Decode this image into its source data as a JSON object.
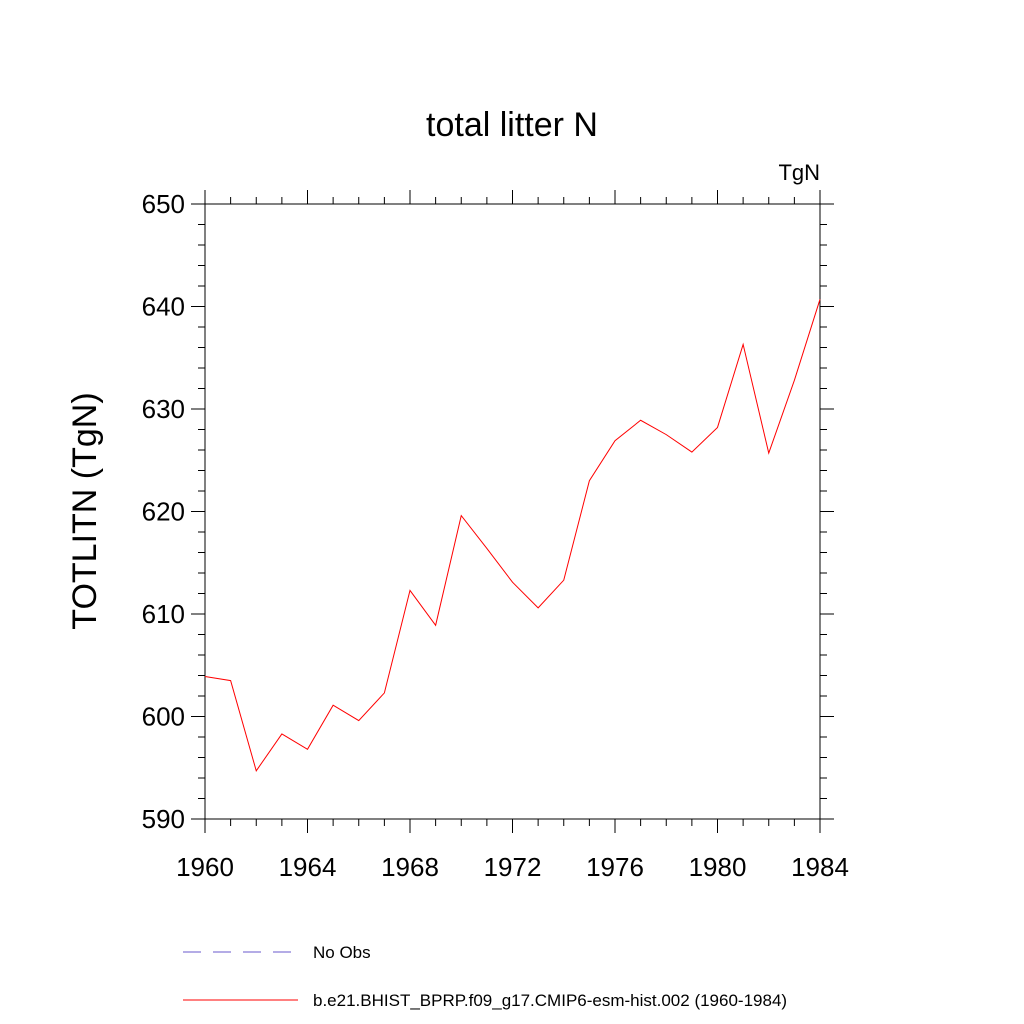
{
  "chart_data": {
    "type": "line",
    "title": "total litter N",
    "units_label": "TgN",
    "xlabel": "",
    "ylabel": "TOTLITN  (TgN)",
    "xlim": [
      1960,
      1984
    ],
    "ylim": [
      590,
      650
    ],
    "x_ticks": [
      1960,
      1964,
      1968,
      1972,
      1976,
      1980,
      1984
    ],
    "y_ticks": [
      590,
      600,
      610,
      620,
      630,
      640,
      650
    ],
    "x_tick_labels": [
      "1960",
      "1964",
      "1968",
      "1972",
      "1976",
      "1980",
      "1984"
    ],
    "y_tick_labels": [
      "590",
      "600",
      "610",
      "620",
      "630",
      "640",
      "650"
    ],
    "grid": false,
    "legend_position": "bottom",
    "series": [
      {
        "name": "No Obs",
        "color": "#6a5acd",
        "style": "dashed",
        "x": [],
        "values": []
      },
      {
        "name": "b.e21.BHIST_BPRP.f09_g17.CMIP6-esm-hist.002 (1960-1984)",
        "color": "#ff0000",
        "style": "solid",
        "x": [
          1960,
          1961,
          1962,
          1963,
          1964,
          1965,
          1966,
          1967,
          1968,
          1969,
          1970,
          1971,
          1972,
          1973,
          1974,
          1975,
          1976,
          1977,
          1978,
          1979,
          1980,
          1981,
          1982,
          1983,
          1984
        ],
        "values": [
          603.9,
          603.5,
          594.7,
          598.3,
          596.8,
          601.1,
          599.6,
          602.3,
          612.3,
          608.9,
          619.6,
          616.4,
          613.1,
          610.6,
          613.3,
          623.0,
          626.9,
          628.9,
          627.5,
          625.8,
          628.2,
          636.3,
          625.7,
          632.8,
          640.7
        ]
      }
    ]
  }
}
